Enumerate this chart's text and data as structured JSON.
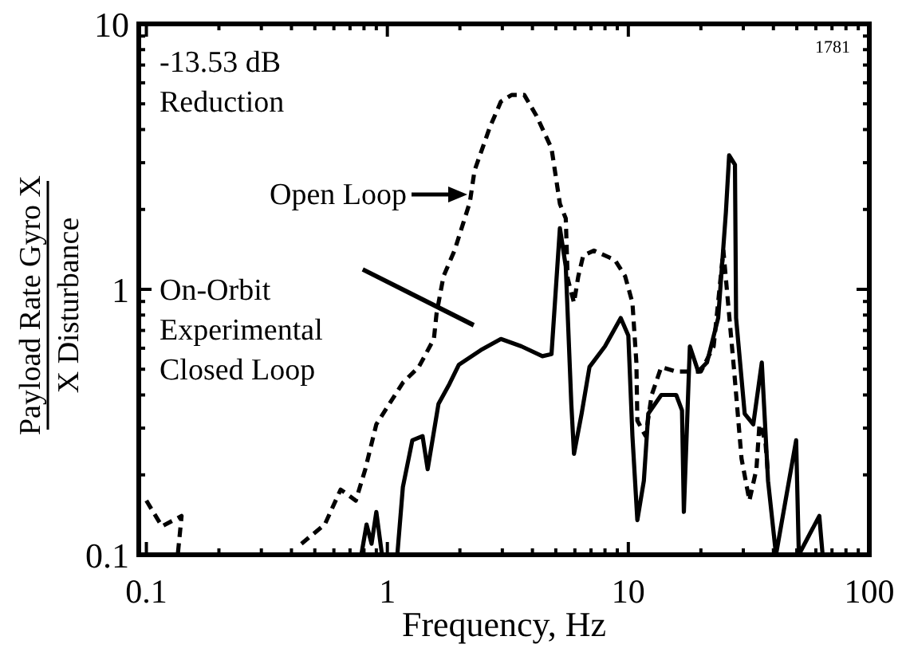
{
  "chart_data": {
    "type": "line",
    "xlabel": "Frequency, Hz",
    "ylabel": "Payload Rate Gyro X\nX Disturbance",
    "log": "xy",
    "xlim": [
      0.093,
      100
    ],
    "ylim": [
      0.1,
      10
    ],
    "xticks": [
      0.1,
      {
        "value": 0.2,
        "label": null
      },
      {
        "value": 0.3,
        "label": null
      },
      {
        "value": 0.4,
        "label": null
      },
      {
        "value": 0.5,
        "label": null
      },
      {
        "value": 0.6,
        "label": null
      },
      {
        "value": 0.7,
        "label": null
      },
      {
        "value": 0.8,
        "label": null
      },
      {
        "value": 0.9,
        "label": null
      },
      1,
      {
        "value": 2,
        "label": null
      },
      {
        "value": 3,
        "label": null
      },
      {
        "value": 4,
        "label": null
      },
      {
        "value": 5,
        "label": null
      },
      {
        "value": 6,
        "label": null
      },
      {
        "value": 7,
        "label": null
      },
      {
        "value": 8,
        "label": null
      },
      {
        "value": 9,
        "label": null
      },
      10,
      {
        "value": 20,
        "label": null
      },
      {
        "value": 30,
        "label": null
      },
      {
        "value": 40,
        "label": null
      },
      {
        "value": 50,
        "label": null
      },
      {
        "value": 60,
        "label": null
      },
      {
        "value": 70,
        "label": null
      },
      {
        "value": 80,
        "label": null
      },
      {
        "value": 90,
        "label": null
      },
      100
    ],
    "yticks": [
      0.1,
      {
        "value": 0.2,
        "label": null
      },
      {
        "value": 0.3,
        "label": null
      },
      {
        "value": 0.4,
        "label": null
      },
      {
        "value": 0.5,
        "label": null
      },
      {
        "value": 0.6,
        "label": null
      },
      {
        "value": 0.7,
        "label": null
      },
      {
        "value": 0.8,
        "label": null
      },
      {
        "value": 0.9,
        "label": null
      },
      1,
      {
        "value": 2,
        "label": null
      },
      {
        "value": 3,
        "label": null
      },
      {
        "value": 4,
        "label": null
      },
      {
        "value": 5,
        "label": null
      },
      {
        "value": 6,
        "label": null
      },
      {
        "value": 7,
        "label": null
      },
      {
        "value": 8,
        "label": null
      },
      {
        "value": 9,
        "label": null
      },
      10
    ],
    "grid": false,
    "legend": "top left",
    "series": [
      {
        "name": "Open Loop",
        "color": "#000000",
        "line_style": "dashed",
        "x": [
          0.1,
          0.116,
          0.14,
          0.135,
          0.3,
          0.44,
          0.55,
          0.64,
          0.74,
          0.81,
          0.9,
          1.16,
          1.35,
          1.56,
          1.6,
          1.71,
          1.9,
          2.2,
          2.3,
          2.66,
          2.96,
          3.28,
          3.7,
          4.16,
          4.8,
          5.2,
          5.5,
          5.6,
          5.95,
          6.2,
          6.5,
          7.2,
          8.8,
          9.7,
          10.4,
          10.8,
          10.9,
          11.8,
          12.5,
          13.7,
          15.8,
          17.5,
          20,
          22.6,
          24.8,
          27.5,
          29.5,
          31.8,
          34,
          35,
          37,
          38
        ],
        "values": [
          0.16,
          0.128,
          0.14,
          0.1,
          null,
          0.11,
          0.13,
          0.176,
          0.16,
          0.21,
          0.31,
          0.445,
          0.51,
          0.65,
          0.81,
          1.12,
          1.4,
          2.13,
          2.8,
          4.07,
          5.1,
          5.4,
          5.4,
          4.5,
          3.4,
          2.1,
          1.85,
          1.1,
          0.89,
          1.12,
          1.34,
          1.4,
          1.29,
          1.12,
          0.89,
          0.53,
          0.32,
          0.28,
          0.4,
          0.51,
          0.49,
          0.49,
          0.49,
          0.61,
          1.4,
          0.49,
          0.23,
          0.16,
          0.21,
          0.31,
          0.27,
          0.2
        ]
      },
      {
        "name": "On-Orbit Experimental Closed Loop",
        "color": "#000000",
        "line_style": "solid",
        "x": [
          0.78,
          0.82,
          0.86,
          0.9,
          0.95,
          1.1,
          1.16,
          1.27,
          1.4,
          1.47,
          1.63,
          1.81,
          1.98,
          2.44,
          2.96,
          3.6,
          4.4,
          4.8,
          5.2,
          5.5,
          5.8,
          5.95,
          6.4,
          6.9,
          8.0,
          9.3,
          10,
          10.4,
          10.9,
          11.6,
          12.1,
          13.7,
          15.8,
          16.7,
          17,
          18,
          19.5,
          21.2,
          23.6,
          25.4,
          26.2,
          27.7,
          28,
          30.4,
          33,
          35.8,
          38,
          41,
          49.7,
          51,
          62,
          64
        ],
        "values": [
          0.1,
          0.13,
          0.11,
          0.145,
          0.1,
          0.1,
          0.18,
          0.27,
          0.28,
          0.21,
          0.37,
          0.44,
          0.52,
          0.59,
          0.65,
          0.61,
          0.56,
          0.57,
          1.7,
          1.22,
          0.37,
          0.24,
          0.34,
          0.51,
          0.61,
          0.78,
          0.67,
          0.28,
          0.135,
          0.19,
          0.34,
          0.4,
          0.4,
          0.35,
          0.145,
          0.61,
          0.49,
          0.53,
          0.78,
          1.95,
          3.2,
          2.95,
          0.78,
          0.34,
          0.31,
          0.53,
          0.19,
          0.1,
          0.27,
          0.1,
          0.14,
          0.1
        ]
      }
    ],
    "annotations": [
      "-13.53 dB Reduction",
      "1781"
    ]
  }
}
